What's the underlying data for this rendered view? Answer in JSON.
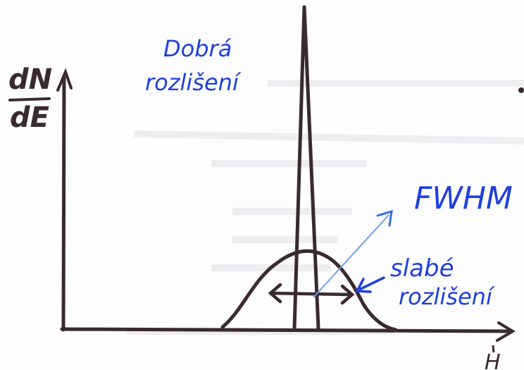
{
  "labels": {
    "y_axis_top": "dN",
    "y_axis_bottom": "dE",
    "x_axis": "H",
    "good_resolution_line1": "Dobrá",
    "good_resolution_line2": "rozlišení",
    "fwhm": "FWHM",
    "bad_resolution_line1": "slabé",
    "bad_resolution_line2": "rozlišení"
  },
  "colors": {
    "axes_ink": "#3a2a2e",
    "blue_ink": "#1f3fe0",
    "arrow_ink": "#2f6fe8"
  }
}
